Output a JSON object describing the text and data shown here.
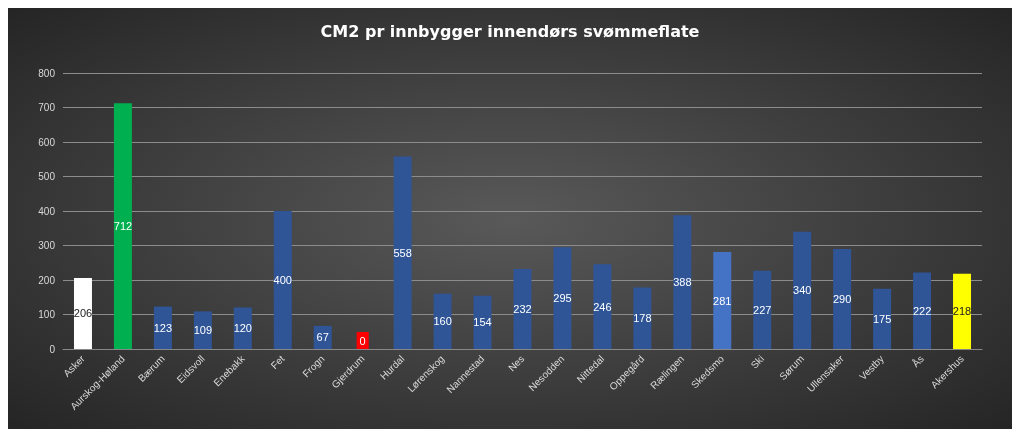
{
  "chart_data": {
    "type": "bar",
    "title": "CM2 pr innbygger innendørs svømmeflate",
    "categories": [
      "Asker",
      "Aurskog-Høland",
      "Bærum",
      "Eidsvoll",
      "Enebakk",
      "Fet",
      "Frogn",
      "Gjerdrum",
      "Hurdal",
      "Lørenskog",
      "Nannestad",
      "Nes",
      "Nesodden",
      "Nittedal",
      "Oppegård",
      "Rælingen",
      "Skedsmo",
      "Ski",
      "Sørum",
      "Ullensaker",
      "Vestby",
      "Ås",
      "Akershus"
    ],
    "values": [
      206,
      712,
      123,
      109,
      120,
      400,
      67,
      0,
      558,
      160,
      154,
      232,
      295,
      246,
      178,
      388,
      281,
      227,
      340,
      290,
      175,
      222,
      218
    ],
    "colors": [
      "#ffffff",
      "#00b050",
      "#2f5597",
      "#2f5597",
      "#2f5597",
      "#2f5597",
      "#2f5597",
      "#ff0000",
      "#2f5597",
      "#2f5597",
      "#2f5597",
      "#2f5597",
      "#2f5597",
      "#2f5597",
      "#2f5597",
      "#2f5597",
      "#4472c4",
      "#2f5597",
      "#2f5597",
      "#2f5597",
      "#2f5597",
      "#2f5597",
      "#ffff00"
    ],
    "ylim": [
      0,
      800
    ],
    "yticks": [
      0,
      100,
      200,
      300,
      400,
      500,
      600,
      700,
      800
    ],
    "grid": "y",
    "data_labels": true
  }
}
